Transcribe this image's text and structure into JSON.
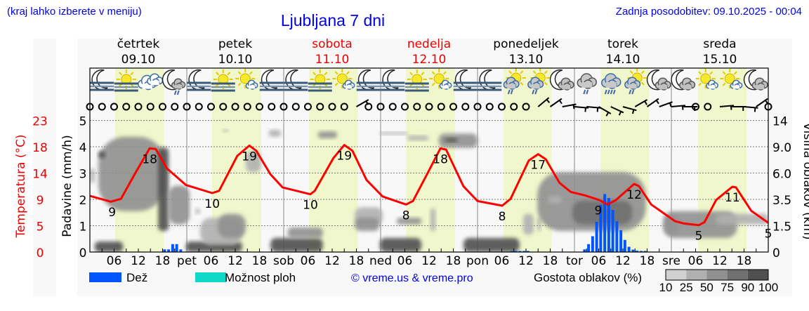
{
  "header": {
    "hint": "(kraj lahko izberete v meniju)",
    "title": "Ljubljana 7 dni",
    "updated": "Zadnja posodobitev: 09.10.2025 - 00:04"
  },
  "days": [
    {
      "name": "četrtek",
      "date": "09.10",
      "weekend": false
    },
    {
      "name": "petek",
      "date": "10.10",
      "weekend": false
    },
    {
      "name": "sobota",
      "date": "11.10",
      "weekend": true
    },
    {
      "name": "nedelja",
      "date": "12.10",
      "weekend": true
    },
    {
      "name": "ponedeljek",
      "date": "13.10",
      "weekend": false
    },
    {
      "name": "torek",
      "date": "14.10",
      "weekend": false
    },
    {
      "name": "sreda",
      "date": "15.10",
      "weekend": false
    }
  ],
  "icons": [
    "moon-fog",
    "sun-fog",
    "cloudy",
    "moon-cloud-rain",
    "moon-fog",
    "sun-fog",
    "sun-cloud",
    "moon-fog",
    "moon-fog",
    "sun-fog",
    "sun-cloud",
    "moon-fog",
    "moon-fog",
    "sun-fog",
    "sun-cloud",
    "moon-fog",
    "moon-fog",
    "sun-cloud-rain",
    "sun-cloud-rain",
    "moon-cloud",
    "cloud-rain",
    "cloud-heavy-rain",
    "sun-cloud-rain",
    "moon-cloud",
    "moon-cloud",
    "sun-cloud",
    "sun-cloud",
    "moon-cloud"
  ],
  "wind": [
    "calm",
    "calm",
    "calm",
    "calm",
    "calm",
    "calm",
    "calm",
    "calm",
    "calm",
    "calm",
    "calm",
    "calm",
    "calm",
    "calm",
    "calm",
    "calm",
    "calm",
    "calm",
    "calm",
    "calm",
    "calm",
    "calm",
    60,
    "calm",
    "calm",
    "calm",
    "calm",
    "calm",
    "calm",
    "calm",
    "calm",
    "calm",
    "calm",
    "calm",
    "calm",
    "calm",
    "calm",
    50,
    55,
    80,
    95,
    95,
    120,
    115,
    105,
    60,
    55,
    70,
    85,
    90,
    "calm",
    "calm",
    85,
    90,
    95,
    55,
    "calm"
  ],
  "axes": {
    "temp_label": "Temperatura (°C)",
    "temp_ticks": [
      "0",
      "5",
      "9",
      "14",
      "18",
      "23"
    ],
    "precip_label": "Padavine (mm/h)",
    "precip_ticks": [
      "0",
      "1",
      "2",
      "3",
      "4",
      "5"
    ],
    "cloud_label": "Višina oblakov (km)",
    "cloud_ticks": [
      "0",
      "1.5",
      "3.5",
      "6.0",
      "9.0",
      "14"
    ]
  },
  "x_ticks": {
    "hours": [
      "06",
      "12",
      "18"
    ],
    "day_abbr": [
      "pet",
      "sob",
      "ned",
      "pon",
      "tor",
      "sre"
    ]
  },
  "legend": {
    "rain": "Dež",
    "showers": "Možnost ploh",
    "copyright": "© vreme.us & vreme.pro",
    "density_label": "Gostota oblakov (%)",
    "density_ticks": [
      "10",
      "25",
      "50",
      "75",
      "90",
      "100"
    ]
  },
  "colors": {
    "temperature": "#ff0000",
    "rain": "#0055ff",
    "showers": "#10d8c8",
    "daylight": "#f0f7cc",
    "weekend": "#dd0000",
    "header": "#0000ee",
    "density": [
      "#d0d0d0",
      "#b0b0b0",
      "#909090",
      "#707070",
      "#505050"
    ]
  },
  "chart_data": {
    "type": "line+bar",
    "xlabel": "",
    "xlim_hours": [
      0,
      168
    ],
    "ylim_precip_mmh": [
      0,
      5
    ],
    "ylim_temp_c": [
      0,
      23
    ],
    "cloud_height_ticks_km": [
      0,
      1.5,
      3.5,
      6,
      9,
      14
    ],
    "grid": true,
    "temperature": [
      [
        0,
        9.8
      ],
      [
        5.2,
        8.8
      ],
      [
        7.7,
        9.3
      ],
      [
        11.1,
        13.6
      ],
      [
        14.8,
        18.1
      ],
      [
        16.3,
        18.0
      ],
      [
        19.1,
        14.6
      ],
      [
        23.8,
        11.7
      ],
      [
        30.3,
        10.3
      ],
      [
        32,
        10.7
      ],
      [
        36.5,
        16.8
      ],
      [
        39.5,
        18.6
      ],
      [
        41.2,
        17.7
      ],
      [
        44.7,
        13.6
      ],
      [
        47.7,
        11.3
      ],
      [
        54.6,
        10.1
      ],
      [
        55.7,
        10.7
      ],
      [
        60.3,
        16.4
      ],
      [
        63,
        18.7
      ],
      [
        65,
        17.7
      ],
      [
        68.5,
        12.6
      ],
      [
        72.5,
        9.7
      ],
      [
        78.3,
        8.3
      ],
      [
        80,
        8.9
      ],
      [
        83.8,
        14.0
      ],
      [
        86.8,
        18.1
      ],
      [
        88.2,
        17.9
      ],
      [
        92.5,
        11.5
      ],
      [
        96,
        8.9
      ],
      [
        102.1,
        8.1
      ],
      [
        104.2,
        9.3
      ],
      [
        108.7,
        16.0
      ],
      [
        111,
        17.1
      ],
      [
        112.9,
        16.2
      ],
      [
        116.3,
        12.1
      ],
      [
        119.1,
        10.5
      ],
      [
        122.6,
        9.9
      ],
      [
        126.1,
        9.1
      ],
      [
        128.2,
        8.3
      ],
      [
        130.3,
        9.1
      ],
      [
        134.8,
        11.9
      ],
      [
        136,
        11.5
      ],
      [
        139,
        8.3
      ],
      [
        144.9,
        5.4
      ],
      [
        147,
        5.0
      ],
      [
        150.8,
        4.7
      ],
      [
        152.2,
        5.2
      ],
      [
        155.1,
        9.1
      ],
      [
        159.1,
        11.4
      ],
      [
        160,
        11.3
      ],
      [
        163.8,
        7.2
      ],
      [
        168,
        5.1
      ]
    ],
    "temperature_labels": [
      [
        5.5,
        "9"
      ],
      [
        14.8,
        "18"
      ],
      [
        30.3,
        "10"
      ],
      [
        39.5,
        "19"
      ],
      [
        54.6,
        "10"
      ],
      [
        63,
        "19"
      ],
      [
        78.3,
        "8"
      ],
      [
        86.8,
        "18"
      ],
      [
        102.1,
        "8"
      ],
      [
        111,
        "17"
      ],
      [
        125.9,
        "9"
      ],
      [
        134.8,
        "12"
      ],
      [
        150.8,
        "5"
      ],
      [
        159.1,
        "11"
      ],
      [
        168,
        "5"
      ]
    ],
    "precipitation": [
      [
        18.5,
        0.1
      ],
      [
        19.5,
        0.1
      ],
      [
        20.5,
        0.3
      ],
      [
        21.5,
        0.3
      ],
      [
        22.5,
        0.1
      ],
      [
        104.5,
        0.02
      ],
      [
        105.5,
        0.02
      ],
      [
        106.5,
        0.02
      ],
      [
        107.5,
        0.02
      ],
      [
        108.5,
        0.02
      ],
      [
        122.5,
        0.1
      ],
      [
        123.5,
        0.3
      ],
      [
        124.5,
        0.6
      ],
      [
        125.5,
        1.15
      ],
      [
        126.5,
        1.8
      ],
      [
        127.5,
        2.2
      ],
      [
        128.5,
        2.05
      ],
      [
        129.5,
        1.6
      ],
      [
        130.5,
        1.17
      ],
      [
        131.5,
        0.83
      ],
      [
        132.5,
        0.46
      ],
      [
        133.5,
        0.2
      ],
      [
        134.5,
        0.09
      ],
      [
        135.5,
        0.05
      ],
      [
        136.5,
        0.03
      ],
      [
        137.5,
        0.03
      ]
    ],
    "daylight": [
      [
        6.25,
        18.3
      ],
      [
        30.25,
        42.4
      ],
      [
        54.3,
        66.4
      ],
      [
        78.3,
        90.4
      ],
      [
        102.4,
        114.4
      ],
      [
        126.5,
        138.5
      ],
      [
        150.6,
        162.6
      ]
    ],
    "clouds": [
      [
        2.1,
        18.6,
        2.6,
        10.9,
        50
      ],
      [
        2.1,
        3.8,
        7.7,
        8.5,
        90
      ],
      [
        16.9,
        19.5,
        1.2,
        8.9,
        90
      ],
      [
        19.5,
        24.7,
        1.6,
        4.8,
        50
      ],
      [
        1.2,
        8.2,
        0,
        0.6,
        90
      ],
      [
        0,
        1.2,
        5.1,
        6.5,
        25
      ],
      [
        23.8,
        37.7,
        0,
        0.6,
        90
      ],
      [
        27.3,
        37.7,
        0.4,
        2.1,
        25
      ],
      [
        31.7,
        38.6,
        0.8,
        2.4,
        50
      ],
      [
        33,
        34.3,
        11.9,
        12.3,
        25
      ],
      [
        44.3,
        47.3,
        10.9,
        12.2,
        25
      ],
      [
        38.6,
        42.4,
        6.1,
        8.5,
        25
      ],
      [
        26.1,
        27.3,
        2.4,
        2.8,
        25
      ],
      [
        44.7,
        57.7,
        0,
        0.8,
        90
      ],
      [
        49,
        57.7,
        0.8,
        1.4,
        50
      ],
      [
        56.5,
        61.2,
        10.6,
        11.9,
        50
      ],
      [
        65.6,
        72.5,
        1.6,
        2.9,
        25
      ],
      [
        65.6,
        71.7,
        1.2,
        2.1,
        50
      ],
      [
        71.8,
        78.6,
        11.5,
        11.8,
        25
      ],
      [
        78.6,
        83.8,
        10.2,
        11.1,
        25
      ],
      [
        86.4,
        96,
        8.9,
        11.5,
        50
      ],
      [
        88,
        91,
        9.9,
        10.6,
        90
      ],
      [
        76,
        82.1,
        1.6,
        2.1,
        50
      ],
      [
        84.3,
        85.6,
        1.2,
        2.8,
        25
      ],
      [
        71.8,
        82.1,
        0,
        0.8,
        90
      ],
      [
        92.5,
        106.4,
        0,
        0.8,
        90
      ],
      [
        107.3,
        109.9,
        1.0,
        2.4,
        25
      ],
      [
        110.8,
        111.7,
        1.2,
        2.1,
        25
      ],
      [
        110.8,
        137.7,
        1.2,
        6.1,
        50
      ],
      [
        119.5,
        134.3,
        1.6,
        3.4,
        75
      ],
      [
        113.4,
        116.9,
        3.2,
        3.8,
        25
      ],
      [
        142.1,
        145.6,
        1.0,
        2.4,
        25
      ],
      [
        142.1,
        160.3,
        0.8,
        2.6,
        50
      ],
      [
        155.1,
        168,
        1.6,
        2.4,
        25
      ]
    ]
  }
}
